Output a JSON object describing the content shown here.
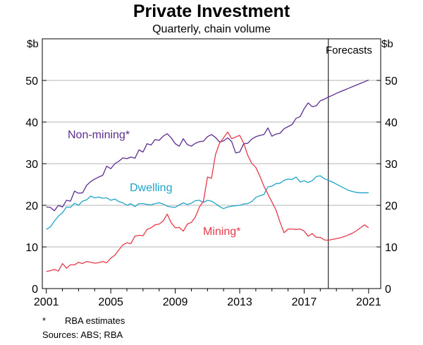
{
  "chart_data": {
    "type": "line",
    "title": "Private Investment",
    "subtitle": "Quarterly, chain volume",
    "ylabel_left": "$b",
    "ylabel_right": "$b",
    "ylim": [
      0,
      60
    ],
    "yticks": [
      0,
      10,
      20,
      30,
      40,
      50
    ],
    "xlim": [
      2000.75,
      2021.75
    ],
    "xticks": [
      2001,
      2005,
      2009,
      2013,
      2017,
      2021
    ],
    "forecast_start": 2018.5,
    "forecast_label": "Forecasts",
    "series": [
      {
        "name": "Non-mining*",
        "color": "#5B2D90",
        "label_color": "#5B2D90",
        "points": [
          [
            2001.0,
            19.6
          ],
          [
            2001.25,
            19.5
          ],
          [
            2001.5,
            18.7
          ],
          [
            2001.75,
            20.0
          ],
          [
            2002.0,
            19.6
          ],
          [
            2002.25,
            21.2
          ],
          [
            2002.5,
            21.0
          ],
          [
            2002.75,
            23.4
          ],
          [
            2003.0,
            22.9
          ],
          [
            2003.25,
            23.0
          ],
          [
            2003.5,
            24.8
          ],
          [
            2003.75,
            25.7
          ],
          [
            2004.0,
            26.3
          ],
          [
            2004.25,
            26.8
          ],
          [
            2004.5,
            27.2
          ],
          [
            2004.75,
            29.4
          ],
          [
            2005.0,
            28.8
          ],
          [
            2005.25,
            30.0
          ],
          [
            2005.5,
            30.6
          ],
          [
            2005.75,
            31.4
          ],
          [
            2006.0,
            31.2
          ],
          [
            2006.25,
            31.6
          ],
          [
            2006.5,
            31.3
          ],
          [
            2006.75,
            33.3
          ],
          [
            2007.0,
            32.8
          ],
          [
            2007.25,
            34.8
          ],
          [
            2007.5,
            34.5
          ],
          [
            2007.75,
            35.8
          ],
          [
            2008.0,
            35.6
          ],
          [
            2008.25,
            36.6
          ],
          [
            2008.5,
            37.2
          ],
          [
            2008.75,
            36.2
          ],
          [
            2009.0,
            34.8
          ],
          [
            2009.25,
            34.2
          ],
          [
            2009.5,
            36.0
          ],
          [
            2009.75,
            34.6
          ],
          [
            2010.0,
            34.2
          ],
          [
            2010.25,
            34.9
          ],
          [
            2010.5,
            35.3
          ],
          [
            2010.75,
            35.4
          ],
          [
            2011.0,
            36.5
          ],
          [
            2011.25,
            37.0
          ],
          [
            2011.5,
            36.3
          ],
          [
            2011.75,
            35.2
          ],
          [
            2012.0,
            35.5
          ],
          [
            2012.25,
            36.2
          ],
          [
            2012.5,
            35.3
          ],
          [
            2012.75,
            32.6
          ],
          [
            2013.0,
            32.8
          ],
          [
            2013.25,
            34.8
          ],
          [
            2013.5,
            34.9
          ],
          [
            2013.75,
            35.9
          ],
          [
            2014.0,
            36.5
          ],
          [
            2014.25,
            36.8
          ],
          [
            2014.5,
            37.0
          ],
          [
            2014.75,
            38.6
          ],
          [
            2015.0,
            36.6
          ],
          [
            2015.25,
            37.1
          ],
          [
            2015.5,
            37.3
          ],
          [
            2015.75,
            38.4
          ],
          [
            2016.0,
            38.9
          ],
          [
            2016.25,
            39.4
          ],
          [
            2016.5,
            40.9
          ],
          [
            2016.75,
            41.3
          ],
          [
            2017.0,
            43.2
          ],
          [
            2017.25,
            44.6
          ],
          [
            2017.5,
            43.7
          ],
          [
            2017.75,
            43.9
          ],
          [
            2018.0,
            45.1
          ],
          [
            2018.25,
            45.5
          ],
          [
            2018.5,
            46.0
          ],
          [
            2018.75,
            46.4
          ],
          [
            2019.0,
            46.9
          ],
          [
            2019.25,
            47.3
          ],
          [
            2019.5,
            47.7
          ],
          [
            2019.75,
            48.1
          ],
          [
            2020.0,
            48.5
          ],
          [
            2020.25,
            48.9
          ],
          [
            2020.5,
            49.3
          ],
          [
            2020.75,
            49.7
          ],
          [
            2021.0,
            50.1
          ]
        ]
      },
      {
        "name": "Dwelling",
        "color": "#1FA3C9",
        "label_color": "#1FA3C9",
        "points": [
          [
            2001.0,
            14.2
          ],
          [
            2001.25,
            14.8
          ],
          [
            2001.5,
            16.2
          ],
          [
            2001.75,
            17.4
          ],
          [
            2002.0,
            18.2
          ],
          [
            2002.25,
            19.6
          ],
          [
            2002.5,
            19.5
          ],
          [
            2002.75,
            20.5
          ],
          [
            2003.0,
            20.0
          ],
          [
            2003.25,
            21.0
          ],
          [
            2003.5,
            21.3
          ],
          [
            2003.75,
            22.2
          ],
          [
            2004.0,
            21.8
          ],
          [
            2004.25,
            22.0
          ],
          [
            2004.5,
            21.7
          ],
          [
            2004.75,
            21.8
          ],
          [
            2005.0,
            21.2
          ],
          [
            2005.25,
            21.5
          ],
          [
            2005.5,
            20.9
          ],
          [
            2005.75,
            20.6
          ],
          [
            2006.0,
            20.0
          ],
          [
            2006.25,
            20.4
          ],
          [
            2006.5,
            19.7
          ],
          [
            2006.75,
            20.4
          ],
          [
            2007.0,
            20.4
          ],
          [
            2007.25,
            20.2
          ],
          [
            2007.5,
            20.1
          ],
          [
            2007.75,
            20.4
          ],
          [
            2008.0,
            20.6
          ],
          [
            2008.25,
            20.3
          ],
          [
            2008.5,
            19.8
          ],
          [
            2008.75,
            19.6
          ],
          [
            2009.0,
            19.5
          ],
          [
            2009.25,
            20.1
          ],
          [
            2009.5,
            20.6
          ],
          [
            2009.75,
            20.2
          ],
          [
            2010.0,
            20.5
          ],
          [
            2010.25,
            21.1
          ],
          [
            2010.5,
            21.2
          ],
          [
            2010.75,
            20.7
          ],
          [
            2011.0,
            21.2
          ],
          [
            2011.25,
            21.0
          ],
          [
            2011.5,
            20.4
          ],
          [
            2011.75,
            19.7
          ],
          [
            2012.0,
            19.2
          ],
          [
            2012.25,
            19.6
          ],
          [
            2012.5,
            19.8
          ],
          [
            2012.75,
            19.9
          ],
          [
            2013.0,
            20.0
          ],
          [
            2013.25,
            20.3
          ],
          [
            2013.5,
            20.4
          ],
          [
            2013.75,
            20.9
          ],
          [
            2014.0,
            21.9
          ],
          [
            2014.25,
            22.3
          ],
          [
            2014.5,
            22.6
          ],
          [
            2014.75,
            24.4
          ],
          [
            2015.0,
            24.6
          ],
          [
            2015.25,
            25.2
          ],
          [
            2015.5,
            25.3
          ],
          [
            2015.75,
            26.0
          ],
          [
            2016.0,
            26.3
          ],
          [
            2016.25,
            26.2
          ],
          [
            2016.5,
            26.8
          ],
          [
            2016.75,
            25.6
          ],
          [
            2017.0,
            25.9
          ],
          [
            2017.25,
            25.5
          ],
          [
            2017.5,
            25.9
          ],
          [
            2017.75,
            26.9
          ],
          [
            2018.0,
            27.1
          ],
          [
            2018.25,
            26.4
          ],
          [
            2018.5,
            26.0
          ],
          [
            2018.75,
            25.6
          ],
          [
            2019.0,
            25.1
          ],
          [
            2019.25,
            24.6
          ],
          [
            2019.5,
            24.1
          ],
          [
            2019.75,
            23.6
          ],
          [
            2020.0,
            23.3
          ],
          [
            2020.25,
            23.1
          ],
          [
            2020.5,
            23.0
          ],
          [
            2020.75,
            23.0
          ],
          [
            2021.0,
            23.0
          ]
        ]
      },
      {
        "name": "Mining*",
        "color": "#E8394A",
        "label_color": "#E8394A",
        "points": [
          [
            2001.0,
            4.1
          ],
          [
            2001.25,
            4.3
          ],
          [
            2001.5,
            4.6
          ],
          [
            2001.75,
            4.2
          ],
          [
            2002.0,
            6.0
          ],
          [
            2002.25,
            4.9
          ],
          [
            2002.5,
            5.7
          ],
          [
            2002.75,
            5.7
          ],
          [
            2003.0,
            6.3
          ],
          [
            2003.25,
            6.0
          ],
          [
            2003.5,
            6.5
          ],
          [
            2003.75,
            6.3
          ],
          [
            2004.0,
            6.1
          ],
          [
            2004.25,
            6.2
          ],
          [
            2004.5,
            6.5
          ],
          [
            2004.75,
            6.2
          ],
          [
            2005.0,
            7.3
          ],
          [
            2005.25,
            8.0
          ],
          [
            2005.5,
            9.3
          ],
          [
            2005.75,
            10.5
          ],
          [
            2006.0,
            11.0
          ],
          [
            2006.25,
            10.8
          ],
          [
            2006.5,
            12.6
          ],
          [
            2006.75,
            12.8
          ],
          [
            2007.0,
            12.7
          ],
          [
            2007.25,
            14.2
          ],
          [
            2007.5,
            14.6
          ],
          [
            2007.75,
            15.3
          ],
          [
            2008.0,
            15.5
          ],
          [
            2008.25,
            16.2
          ],
          [
            2008.5,
            17.9
          ],
          [
            2008.75,
            15.8
          ],
          [
            2009.0,
            14.6
          ],
          [
            2009.25,
            14.7
          ],
          [
            2009.5,
            13.8
          ],
          [
            2009.75,
            15.5
          ],
          [
            2010.0,
            15.9
          ],
          [
            2010.25,
            17.2
          ],
          [
            2010.5,
            19.6
          ],
          [
            2010.75,
            21.0
          ],
          [
            2011.0,
            26.8
          ],
          [
            2011.25,
            26.5
          ],
          [
            2011.5,
            32.2
          ],
          [
            2011.75,
            34.9
          ],
          [
            2012.0,
            36.2
          ],
          [
            2012.25,
            37.6
          ],
          [
            2012.5,
            36.0
          ],
          [
            2012.75,
            36.4
          ],
          [
            2013.0,
            36.8
          ],
          [
            2013.25,
            34.9
          ],
          [
            2013.5,
            32.0
          ],
          [
            2013.75,
            30.1
          ],
          [
            2014.0,
            29.1
          ],
          [
            2014.25,
            27.0
          ],
          [
            2014.5,
            24.6
          ],
          [
            2014.75,
            22.7
          ],
          [
            2015.0,
            20.8
          ],
          [
            2015.25,
            18.9
          ],
          [
            2015.5,
            16.0
          ],
          [
            2015.75,
            13.4
          ],
          [
            2016.0,
            14.3
          ],
          [
            2016.25,
            14.3
          ],
          [
            2016.5,
            14.2
          ],
          [
            2016.75,
            14.3
          ],
          [
            2017.0,
            13.8
          ],
          [
            2017.25,
            12.6
          ],
          [
            2017.5,
            13.2
          ],
          [
            2017.75,
            12.3
          ],
          [
            2018.0,
            12.3
          ],
          [
            2018.25,
            11.7
          ],
          [
            2018.5,
            11.6
          ],
          [
            2018.75,
            11.8
          ],
          [
            2019.0,
            12.0
          ],
          [
            2019.25,
            12.2
          ],
          [
            2019.5,
            12.5
          ],
          [
            2019.75,
            12.9
          ],
          [
            2020.0,
            13.3
          ],
          [
            2020.25,
            13.9
          ],
          [
            2020.5,
            14.6
          ],
          [
            2020.75,
            15.3
          ],
          [
            2021.0,
            14.6
          ]
        ]
      }
    ],
    "footnote_marker": "*",
    "footnote_text": "RBA estimates",
    "sources": "Sources:   ABS; RBA"
  }
}
